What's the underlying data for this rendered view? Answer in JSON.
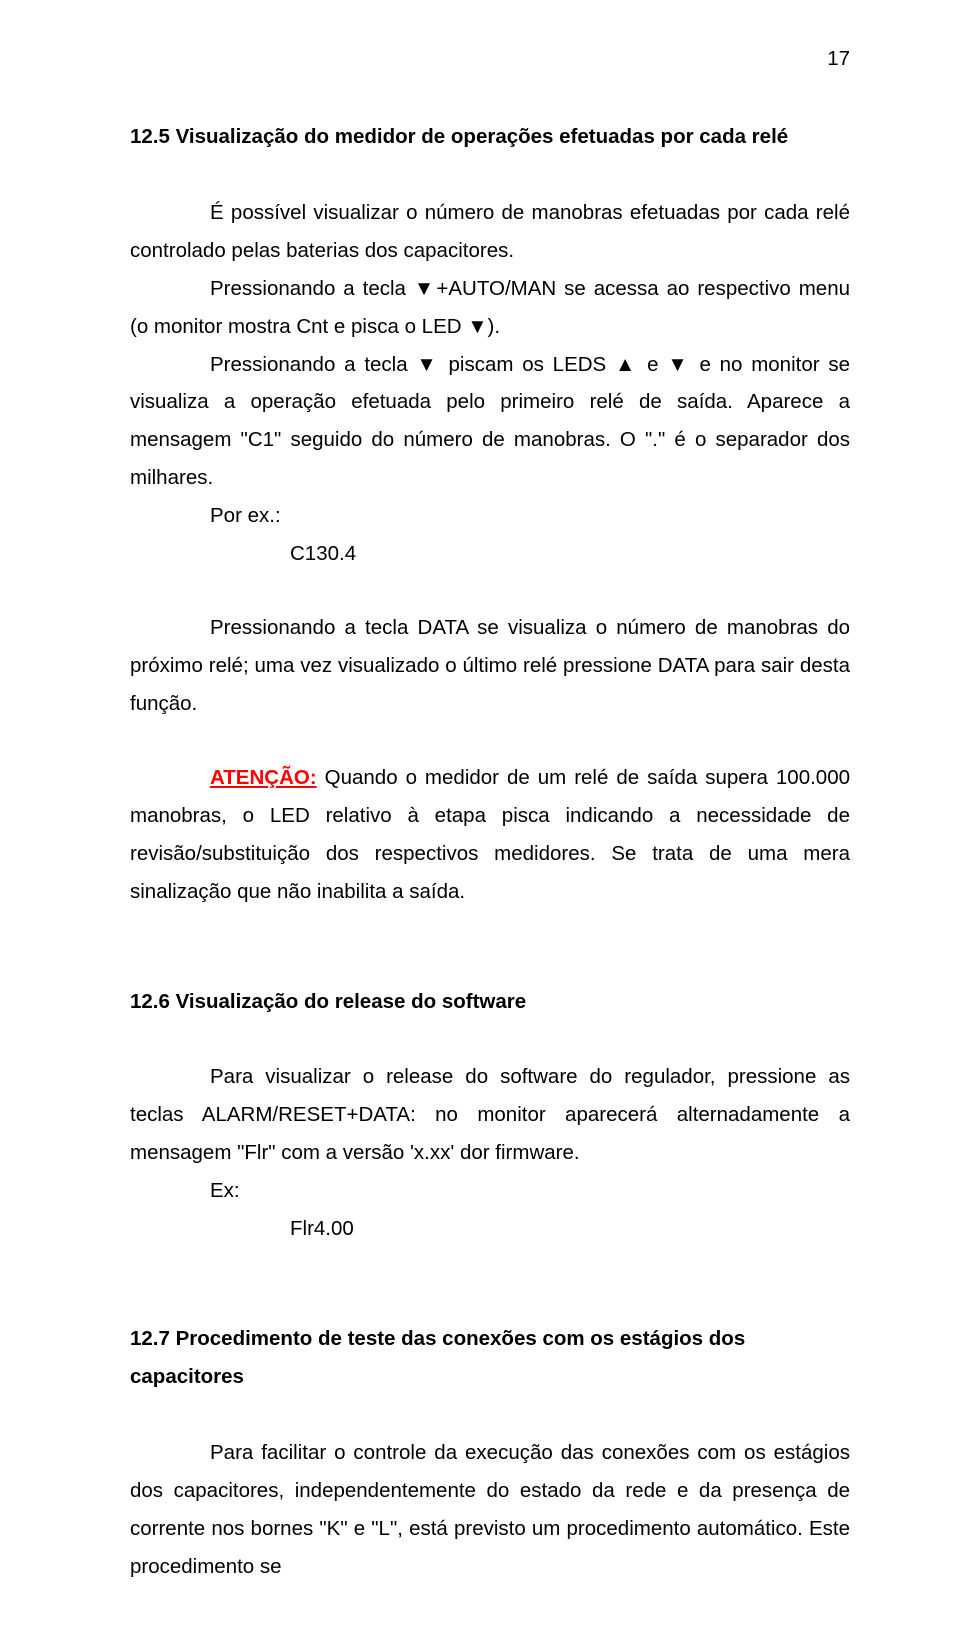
{
  "page_number": "17",
  "section125": {
    "heading": "12.5 Visualização do medidor de operações efetuadas por cada relé",
    "p1": "É possível visualizar o número de manobras efetuadas por cada relé controlado pelas baterias dos capacitores.",
    "p2": "Pressionando a tecla ▼+AUTO/MAN se acessa ao respectivo menu (o monitor mostra Cnt e pisca o LED ▼).",
    "p3": "Pressionando a tecla ▼ piscam os LEDS ▲ e ▼ e no monitor se visualiza a operação efetuada pelo primeiro relé de saída. Aparece a mensagem \"C1\" seguido do número de manobras. O \".\" é o separador dos milhares.",
    "ex_label": "Por ex.:",
    "ex_key": "C1",
    "ex_val": "30.4",
    "p4": "Pressionando a tecla DATA se visualiza o número de manobras do próximo relé; uma vez visualizado o último relé pressione DATA para sair desta função.",
    "att_label": "ATENÇÃO:",
    "p5_rest": " Quando o medidor de um relé de saída supera 100.000 manobras, o LED relativo à etapa pisca indicando a necessidade de revisão/substituição dos respectivos medidores. Se trata de uma mera sinalização que não inabilita a saída."
  },
  "section126": {
    "heading": "12.6 Visualização do release do software",
    "p1": "Para visualizar o release do software do regulador, pressione as teclas ALARM/RESET+DATA: no monitor aparecerá alternadamente a mensagem \"Flr\" com a versão 'x.xx' dor firmware.",
    "ex_label": "Ex:",
    "ex_key": "Flr",
    "ex_val": "4.00"
  },
  "section127": {
    "heading": "12.7 Procedimento de teste das conexões com os estágios dos capacitores",
    "p1": "Para facilitar o controle da execução das conexões com os estágios dos capacitores, independentemente do estado da rede e da presença de corrente nos bornes \"K\" e \"L\", está previsto um procedimento automático. Este procedimento se"
  }
}
